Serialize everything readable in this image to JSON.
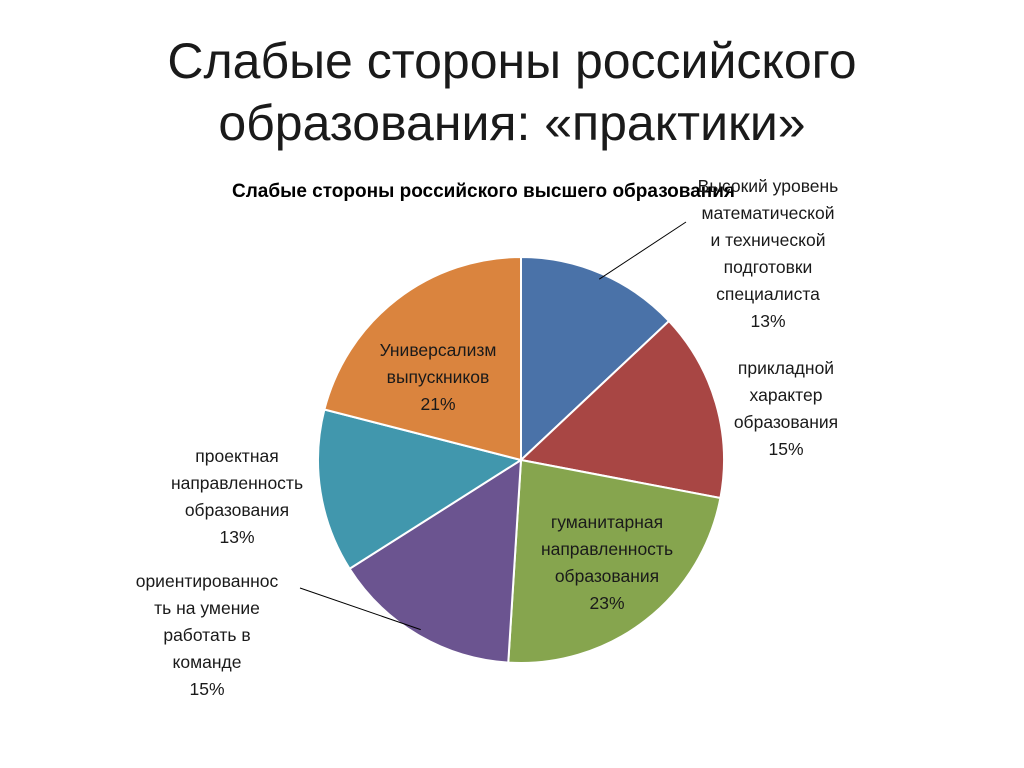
{
  "slide": {
    "title_line1": "Слабые стороны российского",
    "title_line2": "образования: «практики»"
  },
  "chart_data": {
    "type": "pie",
    "title": "Слабые стороны российского высшего образования",
    "start_angle_deg": 0,
    "direction": "clockwise",
    "slices": [
      {
        "label_lines": [
          "Высокий уровень",
          "математической",
          "и технической",
          "подготовки",
          "специалиста"
        ],
        "percent_label": "13%",
        "value": 13,
        "color": "#4a72a8",
        "label_position": "outside",
        "leader_line": true
      },
      {
        "label_lines": [
          "прикладной",
          "характер",
          "образования"
        ],
        "percent_label": "15%",
        "value": 15,
        "color": "#a84644",
        "label_position": "outside",
        "leader_line": false
      },
      {
        "label_lines": [
          "гуманитарная",
          "направленность",
          "образования"
        ],
        "percent_label": "23%",
        "value": 23,
        "color": "#86a54e",
        "label_position": "inside",
        "leader_line": false
      },
      {
        "label_lines": [
          "ориентированнос",
          "ть на умение",
          "работать в",
          "команде"
        ],
        "percent_label": "15%",
        "value": 15,
        "color": "#6b5490",
        "label_position": "outside",
        "leader_line": true
      },
      {
        "label_lines": [
          "проектная",
          "направленность",
          "образования"
        ],
        "percent_label": "13%",
        "value": 13,
        "color": "#4197ad",
        "label_position": "outside",
        "leader_line": false
      },
      {
        "label_lines": [
          "Универсализм",
          "выпускников"
        ],
        "percent_label": "21%",
        "value": 21,
        "color": "#da843e",
        "label_position": "inside",
        "leader_line": false
      }
    ],
    "legend": "none"
  }
}
